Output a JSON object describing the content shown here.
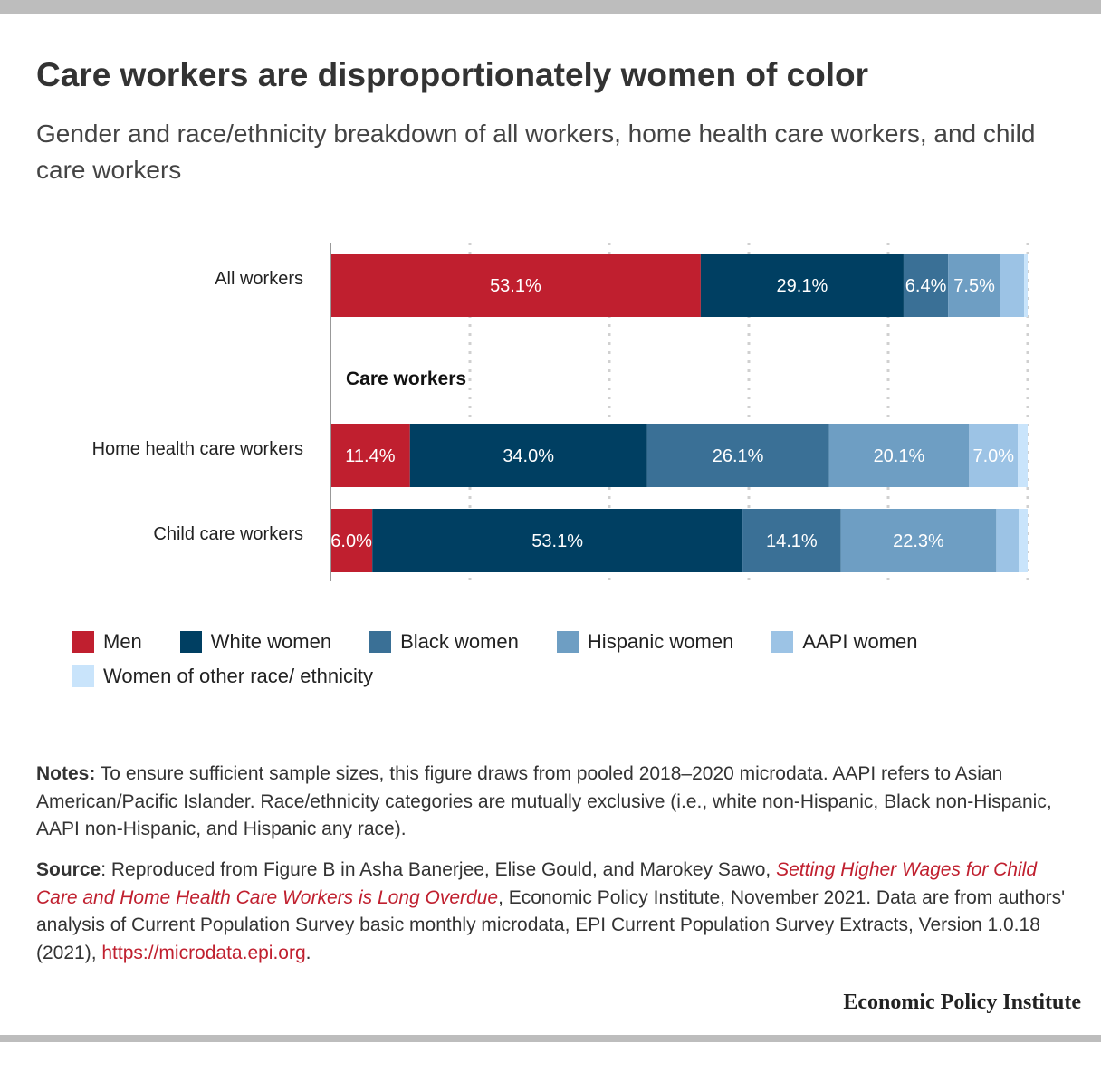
{
  "title": "Care workers are disproportionately women of color",
  "subtitle": "Gender and race/ethnicity breakdown of all workers, home health care workers, and child care workers",
  "colors": {
    "men": "#c01f2f",
    "white_women": "#003f62",
    "black_women": "#3a7096",
    "hispanic_women": "#6e9ec3",
    "aapi_women": "#9cc3e5",
    "other_women": "#c9e4fb"
  },
  "chart_data": {
    "type": "bar",
    "orientation": "horizontal",
    "stacked": true,
    "categories": [
      "All workers",
      "Home health care workers",
      "Child care workers"
    ],
    "group_label": "Care workers",
    "series": [
      {
        "name": "Men",
        "values": [
          53.1,
          11.4,
          6.0
        ],
        "labels": [
          "53.1%",
          "11.4%",
          "6.0%"
        ]
      },
      {
        "name": "White women",
        "values": [
          29.1,
          34.0,
          53.1
        ],
        "labels": [
          "29.1%",
          "34.0%",
          "53.1%"
        ]
      },
      {
        "name": "Black women",
        "values": [
          6.4,
          26.1,
          14.1
        ],
        "labels": [
          "6.4%",
          "26.1%",
          "14.1%"
        ]
      },
      {
        "name": "Hispanic women",
        "values": [
          7.5,
          20.1,
          22.3
        ],
        "labels": [
          "7.5%",
          "20.1%",
          "22.3%"
        ]
      },
      {
        "name": "AAPI women",
        "values": [
          3.4,
          7.0,
          3.2
        ],
        "labels": [
          "",
          "7.0%",
          ""
        ]
      },
      {
        "name": "Women of other race/ ethnicity",
        "values": [
          0.5,
          1.4,
          1.3
        ],
        "labels": [
          "",
          "",
          ""
        ]
      }
    ],
    "xlim": [
      0,
      100
    ],
    "grid": true,
    "legend": "bottom"
  },
  "legend_items": [
    "Men",
    "White women",
    "Black women",
    "Hispanic women",
    "AAPI women",
    "Women of other race/ ethnicity"
  ],
  "notes": {
    "label": "Notes:",
    "text": " To ensure sufficient sample sizes, this figure draws from pooled 2018–2020 microdata. AAPI refers to Asian American/Pacific Islander. Race/ethnicity categories are mutually exclusive (i.e., white non-Hispanic, Black non-Hispanic, AAPI non-Hispanic, and Hispanic any race)."
  },
  "source": {
    "label": "Source",
    "text_before": ": Reproduced from Figure B in Asha Banerjee, Elise Gould, and Marokey Sawo, ",
    "report_title": "Setting Higher Wages for Child Care and Home Health Care Workers is Long Overdue",
    "text_after": ", Economic Policy Institute, November 2021. Data are from authors' analysis of Current Population Survey basic monthly microdata, EPI Current Population Survey Extracts, Version 1.0.18 (2021), ",
    "link": "https://microdata.epi.org",
    "end": "."
  },
  "logo": "Economic Policy Institute"
}
